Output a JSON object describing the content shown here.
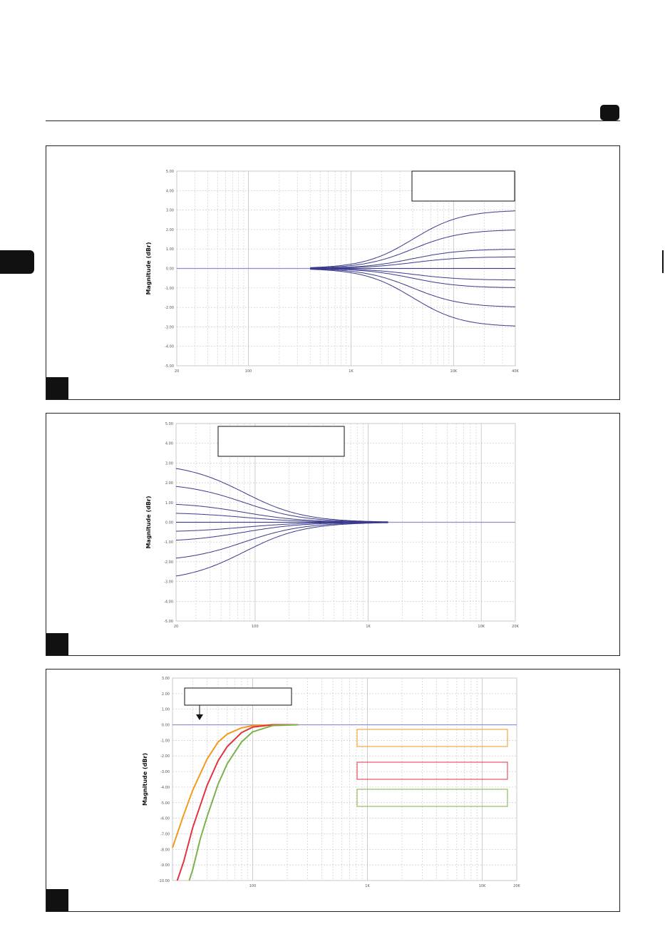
{
  "page": {
    "rule": "header-rule",
    "page_badge": "page-number-badge"
  },
  "colors": {
    "grid": "#c8c8c8",
    "zero_line": "#8c8ccf",
    "blue_curve": "#3a3a8c",
    "orange": "#f39a1e",
    "red": "#e2343f",
    "green": "#7cb24a"
  },
  "chart_data": [
    {
      "type": "line",
      "title": "",
      "ylabel": "Magnitude (dBr)",
      "xlabel": "",
      "x_scale": "log",
      "xlim": [
        20,
        40000
      ],
      "ylim": [
        -5,
        5
      ],
      "x_ticks": [
        {
          "value": 20,
          "label": "20"
        },
        {
          "value": 100,
          "label": "100"
        },
        {
          "value": 1000,
          "label": "1K"
        },
        {
          "value": 10000,
          "label": "10K"
        },
        {
          "value": 40000,
          "label": "40K"
        }
      ],
      "y_ticks": [
        {
          "value": 5,
          "label": "5.00"
        },
        {
          "value": 4,
          "label": "4.00"
        },
        {
          "value": 3,
          "label": "3.00"
        },
        {
          "value": 2,
          "label": "2.00"
        },
        {
          "value": 1,
          "label": "1.00"
        },
        {
          "value": 0,
          "label": "0.00"
        },
        {
          "value": -1,
          "label": "-1.00"
        },
        {
          "value": -2,
          "label": "-2.00"
        },
        {
          "value": -3,
          "label": "-3.00"
        },
        {
          "value": -4,
          "label": "-4.00"
        },
        {
          "value": -5,
          "label": "-5.00"
        }
      ],
      "grid": true,
      "legend": "top-right",
      "curve_shape": "high-shelf",
      "shelf_center_hz": 4000,
      "shelf_start_hz": 400,
      "series": [
        {
          "gain_db": 3.0
        },
        {
          "gain_db": 2.0
        },
        {
          "gain_db": 1.0
        },
        {
          "gain_db": 0.6
        },
        {
          "gain_db": 0.0
        },
        {
          "gain_db": -0.6
        },
        {
          "gain_db": -1.0
        },
        {
          "gain_db": -2.0
        },
        {
          "gain_db": -3.0
        }
      ]
    },
    {
      "type": "line",
      "title": "",
      "ylabel": "Magnitude (dBr)",
      "xlabel": "",
      "x_scale": "log",
      "xlim": [
        20,
        20000
      ],
      "ylim": [
        -5,
        5
      ],
      "x_ticks": [
        {
          "value": 20,
          "label": "20"
        },
        {
          "value": 100,
          "label": "100"
        },
        {
          "value": 1000,
          "label": "1K"
        },
        {
          "value": 10000,
          "label": "10K"
        },
        {
          "value": 20000,
          "label": "20K"
        }
      ],
      "y_ticks": [
        {
          "value": 5,
          "label": "5.00"
        },
        {
          "value": 4,
          "label": "4.00"
        },
        {
          "value": 3,
          "label": "3.00"
        },
        {
          "value": 2,
          "label": "2.00"
        },
        {
          "value": 1,
          "label": "1.00"
        },
        {
          "value": 0,
          "label": "0.00"
        },
        {
          "value": -1,
          "label": "-1.00"
        },
        {
          "value": -2,
          "label": "-2.00"
        },
        {
          "value": -3,
          "label": "-3.00"
        },
        {
          "value": -4,
          "label": "-4.00"
        },
        {
          "value": -5,
          "label": "-5.00"
        }
      ],
      "grid": true,
      "legend": "top-center",
      "curve_shape": "low-shelf",
      "shelf_center_hz": 80,
      "shelf_end_hz": 1500,
      "series": [
        {
          "gain_db": 3.0
        },
        {
          "gain_db": 2.0
        },
        {
          "gain_db": 1.0
        },
        {
          "gain_db": 0.5
        },
        {
          "gain_db": 0.0
        },
        {
          "gain_db": -0.5
        },
        {
          "gain_db": -1.0
        },
        {
          "gain_db": -2.0
        },
        {
          "gain_db": -3.0
        }
      ]
    },
    {
      "type": "line",
      "title": "",
      "ylabel": "Magnitude (dBr)",
      "xlabel": "",
      "x_scale": "log",
      "xlim": [
        20,
        20000
      ],
      "ylim": [
        -10,
        3
      ],
      "x_ticks": [
        {
          "value": 100,
          "label": "100"
        },
        {
          "value": 1000,
          "label": "1K"
        },
        {
          "value": 10000,
          "label": "10K"
        },
        {
          "value": 20000,
          "label": "20K"
        }
      ],
      "y_ticks": [
        {
          "value": 3,
          "label": "3.00"
        },
        {
          "value": 2,
          "label": "2.00"
        },
        {
          "value": 1,
          "label": "1.00"
        },
        {
          "value": 0,
          "label": "0.00"
        },
        {
          "value": -1,
          "label": "-1.00"
        },
        {
          "value": -2,
          "label": "-2.00"
        },
        {
          "value": -3,
          "label": "-3.00"
        },
        {
          "value": -4,
          "label": "-4.00"
        },
        {
          "value": -5,
          "label": "-5.00"
        },
        {
          "value": -6,
          "label": "-6.00"
        },
        {
          "value": -7,
          "label": "-7.00"
        },
        {
          "value": -8,
          "label": "-8.00"
        },
        {
          "value": -9,
          "label": "-9.00"
        },
        {
          "value": -10,
          "label": "-10.00"
        }
      ],
      "grid": true,
      "legend": "right",
      "curve_shape": "high-pass",
      "series": [
        {
          "color": "#f39a1e",
          "x_points": [
            20,
            25,
            30,
            40,
            50,
            60,
            80,
            100,
            150,
            250
          ],
          "y_points": [
            -7.9,
            -5.8,
            -4.2,
            -2.2,
            -1.1,
            -0.6,
            -0.2,
            -0.05,
            0,
            0
          ]
        },
        {
          "color": "#e2343f",
          "x_points": [
            22,
            25,
            30,
            40,
            50,
            60,
            80,
            100,
            150,
            250
          ],
          "y_points": [
            -10,
            -8.8,
            -6.6,
            -3.9,
            -2.3,
            -1.4,
            -0.5,
            -0.15,
            0,
            0
          ]
        },
        {
          "color": "#7cb24a",
          "x_points": [
            28,
            30,
            35,
            40,
            50,
            60,
            80,
            100,
            150,
            250
          ],
          "y_points": [
            -10,
            -9.3,
            -7.3,
            -5.9,
            -3.8,
            -2.5,
            -1.1,
            -0.45,
            -0.05,
            0
          ]
        }
      ],
      "legend_boxes": [
        {
          "color": "#f39a1e"
        },
        {
          "color": "#e2343f"
        },
        {
          "color": "#7cb24a"
        }
      ],
      "annotation_box": true,
      "annotation_arrow": "down"
    }
  ]
}
